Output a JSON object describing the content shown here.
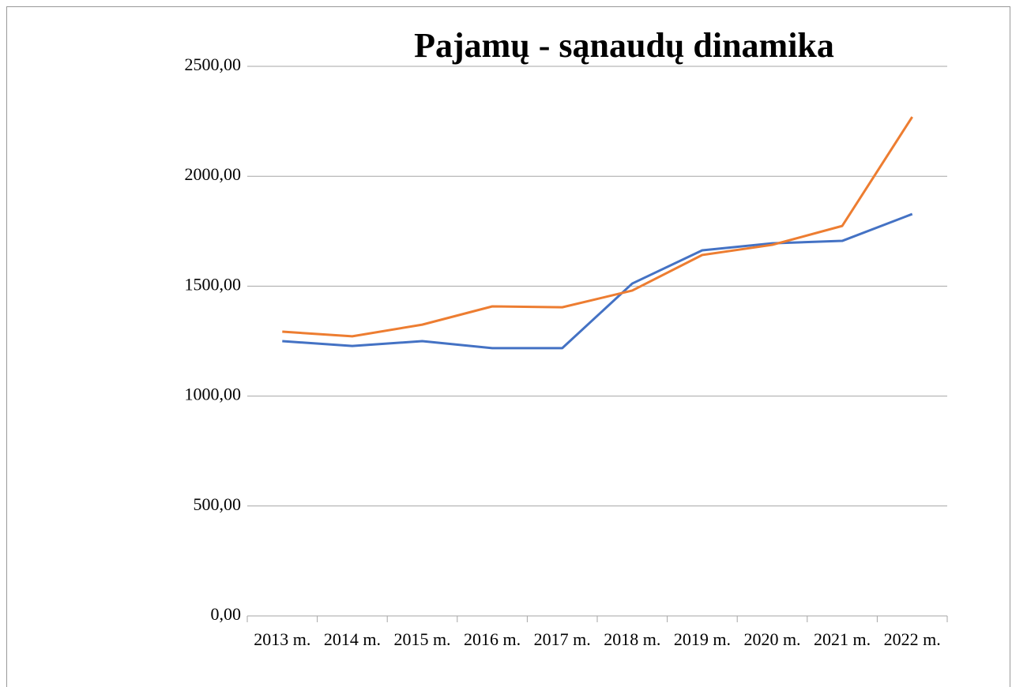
{
  "chart_data": {
    "type": "line",
    "title": "Pajamų - sąnaudų dinamika",
    "categories": [
      "2013 m.",
      "2014 m.",
      "2015 m.",
      "2016 m.",
      "2017 m.",
      "2018 m.",
      "2019 m.",
      "2020 m.",
      "2021 m.",
      "2022 m."
    ],
    "series": [
      {
        "color": "#4472c4",
        "values": [
          1250,
          1228,
          1250,
          1218,
          1218,
          1512,
          1663,
          1695,
          1706,
          1828
        ]
      },
      {
        "color": "#ed7d31",
        "values": [
          1293,
          1272,
          1325,
          1408,
          1404,
          1480,
          1642,
          1688,
          1774,
          2270
        ]
      }
    ],
    "ylim": [
      0,
      2500
    ],
    "yticks": [
      {
        "value": 0,
        "label": "0,00"
      },
      {
        "value": 500,
        "label": "500,00"
      },
      {
        "value": 1000,
        "label": "1000,00"
      },
      {
        "value": 1500,
        "label": "1500,00"
      },
      {
        "value": 2000,
        "label": "2000,00"
      },
      {
        "value": 2500,
        "label": "2500,00"
      }
    ],
    "grid": true
  }
}
